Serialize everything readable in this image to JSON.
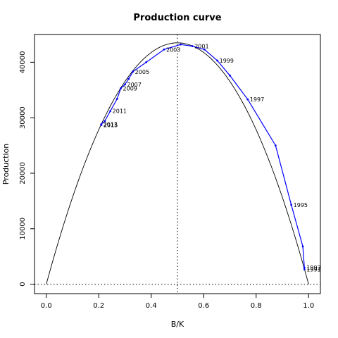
{
  "chart_data": {
    "type": "line",
    "title": "Production curve",
    "xlabel": "B/K",
    "ylabel": "Production",
    "xlim": [
      -0.045,
      1.045
    ],
    "ylim": [
      -1700,
      45000
    ],
    "x_ticks": [
      "0.0",
      "0.2",
      "0.4",
      "0.6",
      "0.8",
      "1.0"
    ],
    "y_ticks": [
      "0",
      "10000",
      "20000",
      "30000",
      "40000"
    ],
    "grid": false,
    "legend": "none",
    "model_curve": {
      "color": "#000000",
      "peak_x": 0.5,
      "peak_y": 43500
    },
    "reference_lines": {
      "vertical_x": 0.5,
      "horizontal_y": 0,
      "style": "dotted"
    },
    "series": [
      {
        "color": "#0000ff",
        "points": [
          {
            "x": 0.984,
            "y": 2700,
            "label": "1991"
          },
          {
            "x": 0.984,
            "y": 3000,
            "label": "1993"
          },
          {
            "x": 0.978,
            "y": 6800
          },
          {
            "x": 0.934,
            "y": 14300,
            "label": "1995"
          },
          {
            "x": 0.874,
            "y": 25000
          },
          {
            "x": 0.768,
            "y": 33300,
            "label": "1997"
          },
          {
            "x": 0.7,
            "y": 37600
          },
          {
            "x": 0.652,
            "y": 40300,
            "label": "1999"
          },
          {
            "x": 0.603,
            "y": 42300
          },
          {
            "x": 0.557,
            "y": 42900,
            "label": "2001"
          },
          {
            "x": 0.512,
            "y": 43200
          },
          {
            "x": 0.449,
            "y": 42300,
            "label": "2003"
          },
          {
            "x": 0.381,
            "y": 40000
          },
          {
            "x": 0.33,
            "y": 38300,
            "label": "2005"
          },
          {
            "x": 0.314,
            "y": 37000
          },
          {
            "x": 0.3,
            "y": 36000,
            "label": "2007"
          },
          {
            "x": 0.284,
            "y": 35300,
            "label": "2009"
          },
          {
            "x": 0.27,
            "y": 33400
          },
          {
            "x": 0.244,
            "y": 31200,
            "label": "2011"
          },
          {
            "x": 0.223,
            "y": 29400
          },
          {
            "x": 0.209,
            "y": 28800,
            "label": "2013"
          },
          {
            "x": 0.21,
            "y": 28700,
            "label": "2015"
          }
        ]
      }
    ]
  }
}
